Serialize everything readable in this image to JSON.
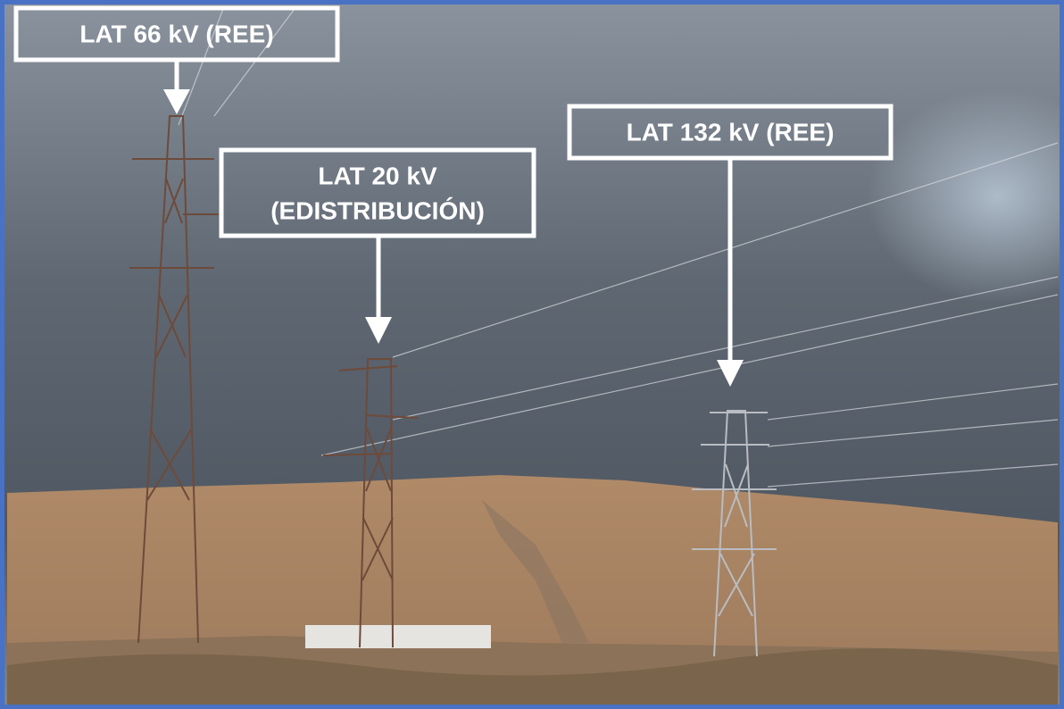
{
  "labels": [
    {
      "lines": [
        "LAT 66 kV (REE)"
      ]
    },
    {
      "lines": [
        "LAT 20 kV",
        "(EDISTRIBUCIÓN)"
      ]
    },
    {
      "lines": [
        "LAT 132 kV (REE)"
      ]
    }
  ]
}
